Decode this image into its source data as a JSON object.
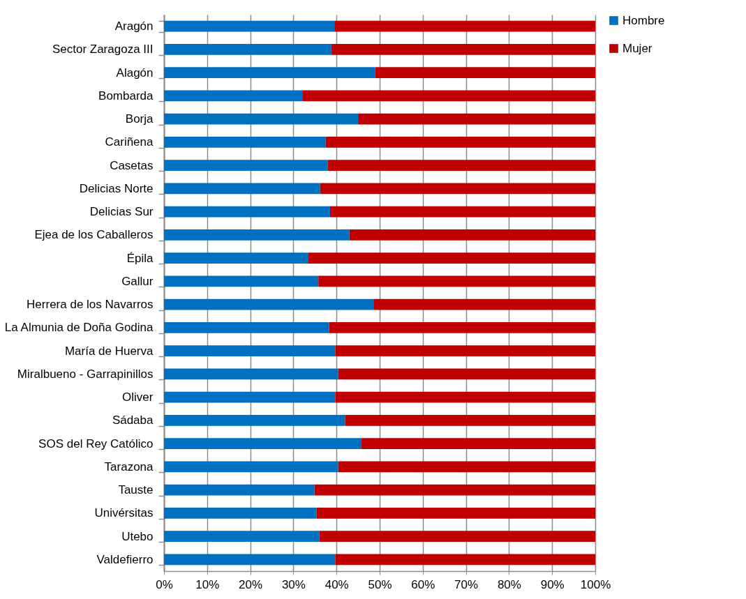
{
  "chart_data": {
    "type": "bar",
    "orientation": "horizontal",
    "stacked": true,
    "categories": [
      "Aragón",
      "Sector Zaragoza III",
      "Alagón",
      "Bombarda",
      "Borja",
      "Cariñena",
      "Casetas",
      "Delicias Norte",
      "Delicias Sur",
      "Ejea de los Caballeros",
      "Épila",
      "Gallur",
      "Herrera de los Navarros",
      "La Almunia de Doña Godina",
      "María de Huerva",
      "Miralbueno - Garrapinillos",
      "Oliver",
      "Sádaba",
      "SOS del Rey Católico",
      "Tarazona",
      "Tauste",
      "Univérsitas",
      "Utebo",
      "Valdefierro"
    ],
    "series": [
      {
        "name": "Hombre",
        "color": "#0070c0",
        "values": [
          39.5,
          38.8,
          49.0,
          32.2,
          45.0,
          37.5,
          38.0,
          36.2,
          38.5,
          43.0,
          33.5,
          35.8,
          48.7,
          38.3,
          39.7,
          40.4,
          39.7,
          42.0,
          45.8,
          40.4,
          34.9,
          35.4,
          36.0,
          39.7
        ]
      },
      {
        "name": "Mujer",
        "color": "#c00000",
        "values": [
          60.5,
          61.2,
          51.0,
          67.8,
          55.0,
          62.5,
          62.0,
          63.8,
          61.5,
          57.0,
          66.5,
          64.2,
          51.3,
          61.7,
          60.3,
          59.6,
          60.3,
          58.0,
          54.2,
          59.6,
          65.1,
          64.6,
          64.0,
          60.3
        ]
      }
    ],
    "xlim": [
      0,
      100
    ],
    "xticks": [
      {
        "value": 0,
        "label": "0%"
      },
      {
        "value": 10,
        "label": "10%"
      },
      {
        "value": 20,
        "label": "20%"
      },
      {
        "value": 30,
        "label": "30%"
      },
      {
        "value": 40,
        "label": "40%"
      },
      {
        "value": 50,
        "label": "50%"
      },
      {
        "value": 60,
        "label": "60%"
      },
      {
        "value": 70,
        "label": "70%"
      },
      {
        "value": 80,
        "label": "80%"
      },
      {
        "value": 90,
        "label": "90%"
      },
      {
        "value": 100,
        "label": "100%"
      }
    ],
    "grid": "x",
    "legend": "right"
  }
}
